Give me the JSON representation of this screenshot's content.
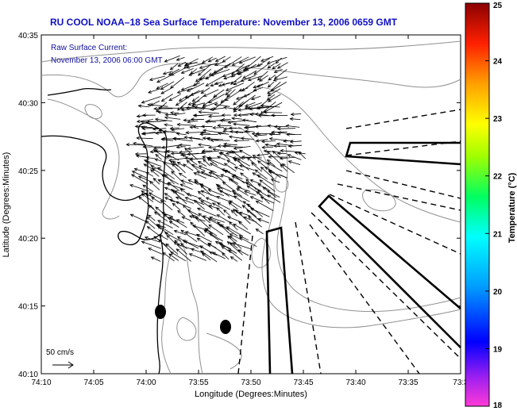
{
  "title": "RU COOL  NOAA–18  Sea Surface Temperature:  November 13, 2006 0659 GMT",
  "legend_note": {
    "line1": "Raw Surface Current:",
    "line2": "November 13, 2006 06:00 GMT"
  },
  "scale_label": "50 cm/s",
  "axes": {
    "xlabel": "Longitude (Degrees:Minutes)",
    "ylabel": "Latitude (Degrees:Minutes)",
    "x_ticks": [
      "74:10",
      "74:05",
      "74:00",
      "73:55",
      "73:50",
      "73:45",
      "73:40",
      "73:35",
      "73:3"
    ],
    "y_ticks": [
      "40:35",
      "40:30",
      "40:25",
      "40:20",
      "40:15",
      "40:10"
    ]
  },
  "colorbar": {
    "label": "Temperature (°C)",
    "ticks": [
      "25",
      "24",
      "23",
      "22",
      "21",
      "20",
      "19",
      "18"
    ],
    "min": 18,
    "max": 25
  },
  "colors": {
    "title": "#1010c0",
    "note": "#1010a0",
    "map_lines": "#000000",
    "contours": "#909090"
  },
  "chart_data": {
    "type": "vector-field map",
    "title": "RU COOL  NOAA–18  Sea Surface Temperature:  November 13, 2006 0659 GMT",
    "xlabel": "Longitude (Degrees:Minutes)",
    "ylabel": "Latitude (Degrees:Minutes)",
    "xlim_west_deg": [
      74.1667,
      73.5
    ],
    "ylim_north_deg": [
      40.1667,
      40.5833
    ],
    "reference_vector_cm_s": 50,
    "vector_region": {
      "west_lon": [
        73.8,
        74.02
      ],
      "north_lat": [
        40.33,
        40.55
      ]
    },
    "colorbar_range_c": [
      18,
      25
    ]
  }
}
